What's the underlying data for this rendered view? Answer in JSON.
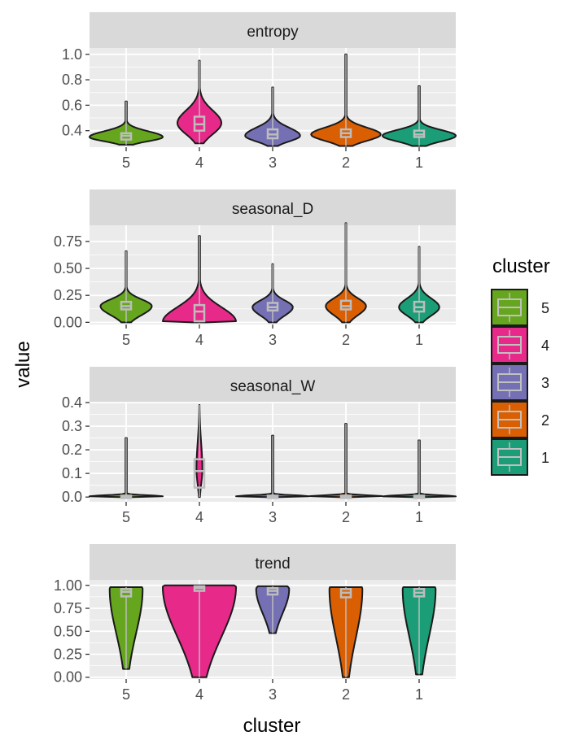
{
  "chart_data": {
    "type": "violin",
    "xlabel": "cluster",
    "ylabel": "value",
    "categories": [
      "5",
      "4",
      "3",
      "2",
      "1"
    ],
    "legend": {
      "title": "cluster",
      "placement": "right",
      "entries": [
        "5",
        "4",
        "3",
        "2",
        "1"
      ]
    },
    "colors": {
      "5": "#66A61E",
      "4": "#E7298A",
      "3": "#7570B3",
      "2": "#D95F02",
      "1": "#1B9E77"
    },
    "panels": [
      {
        "name": "entropy",
        "ylim": [
          0.27,
          1.05
        ],
        "yticks": [
          0.4,
          0.6,
          0.8,
          1.0
        ],
        "ytick_labels": [
          "0.4",
          "0.6",
          "0.8",
          "1.0"
        ],
        "groups": [
          {
            "cluster": "5",
            "min": 0.29,
            "max": 0.63,
            "q1": 0.33,
            "median": 0.36,
            "q3": 0.38,
            "mode": 0.35,
            "width": 1.0
          },
          {
            "cluster": "4",
            "min": 0.3,
            "max": 0.95,
            "q1": 0.4,
            "median": 0.45,
            "q3": 0.51,
            "mode": 0.46,
            "width": 0.6
          },
          {
            "cluster": "3",
            "min": 0.28,
            "max": 0.74,
            "q1": 0.34,
            "median": 0.37,
            "q3": 0.41,
            "mode": 0.36,
            "width": 0.75
          },
          {
            "cluster": "2",
            "min": 0.28,
            "max": 1.0,
            "q1": 0.35,
            "median": 0.38,
            "q3": 0.41,
            "mode": 0.37,
            "width": 0.95
          },
          {
            "cluster": "1",
            "min": 0.28,
            "max": 0.75,
            "q1": 0.35,
            "median": 0.37,
            "q3": 0.4,
            "mode": 0.36,
            "width": 1.0
          }
        ]
      },
      {
        "name": "seasonal_D",
        "ylim": [
          -0.02,
          0.9
        ],
        "yticks": [
          0.0,
          0.25,
          0.5,
          0.75
        ],
        "ytick_labels": [
          "0.00",
          "0.25",
          "0.50",
          "0.75"
        ],
        "groups": [
          {
            "cluster": "5",
            "min": 0.0,
            "max": 0.66,
            "q1": 0.12,
            "median": 0.15,
            "q3": 0.19,
            "mode": 0.15,
            "width": 0.7
          },
          {
            "cluster": "4",
            "min": 0.0,
            "max": 0.8,
            "q1": 0.01,
            "median": 0.1,
            "q3": 0.16,
            "mode": 0.005,
            "width": 1.0
          },
          {
            "cluster": "3",
            "min": 0.0,
            "max": 0.54,
            "q1": 0.11,
            "median": 0.14,
            "q3": 0.18,
            "mode": 0.14,
            "width": 0.55
          },
          {
            "cluster": "2",
            "min": 0.0,
            "max": 0.92,
            "q1": 0.12,
            "median": 0.15,
            "q3": 0.2,
            "mode": 0.15,
            "width": 0.55
          },
          {
            "cluster": "1",
            "min": 0.0,
            "max": 0.7,
            "q1": 0.1,
            "median": 0.14,
            "q3": 0.19,
            "mode": 0.14,
            "width": 0.55
          }
        ]
      },
      {
        "name": "seasonal_W",
        "ylim": [
          -0.02,
          0.4
        ],
        "yticks": [
          0.0,
          0.1,
          0.2,
          0.3,
          0.4
        ],
        "ytick_labels": [
          "0.0",
          "0.1",
          "0.2",
          "0.3",
          "0.4"
        ],
        "groups": [
          {
            "cluster": "5",
            "min": 0.0,
            "max": 0.25,
            "q1": 0.001,
            "median": 0.003,
            "q3": 0.006,
            "mode": 0.003,
            "width": 1.0
          },
          {
            "cluster": "4",
            "min": 0.0,
            "max": 0.39,
            "q1": 0.04,
            "median": 0.11,
            "q3": 0.16,
            "mode": 0.12,
            "width": 0.08
          },
          {
            "cluster": "3",
            "min": 0.0,
            "max": 0.26,
            "q1": 0.001,
            "median": 0.003,
            "q3": 0.006,
            "mode": 0.003,
            "width": 1.0
          },
          {
            "cluster": "2",
            "min": 0.0,
            "max": 0.31,
            "q1": 0.001,
            "median": 0.003,
            "q3": 0.006,
            "mode": 0.003,
            "width": 1.0
          },
          {
            "cluster": "1",
            "min": 0.0,
            "max": 0.24,
            "q1": 0.001,
            "median": 0.003,
            "q3": 0.006,
            "mode": 0.003,
            "width": 1.0
          }
        ]
      },
      {
        "name": "trend",
        "ylim": [
          -0.02,
          1.06
        ],
        "yticks": [
          0.0,
          0.25,
          0.5,
          0.75,
          1.0
        ],
        "ytick_labels": [
          "0.00",
          "0.25",
          "0.50",
          "0.75",
          "1.00"
        ],
        "groups": [
          {
            "cluster": "5",
            "min": 0.09,
            "max": 0.98,
            "q1": 0.88,
            "median": 0.93,
            "q3": 0.96,
            "mode": 0.96,
            "width": 0.45
          },
          {
            "cluster": "4",
            "min": 0.0,
            "max": 1.0,
            "q1": 0.94,
            "median": 0.97,
            "q3": 0.99,
            "mode": 0.985,
            "width": 1.0
          },
          {
            "cluster": "3",
            "min": 0.48,
            "max": 0.99,
            "q1": 0.9,
            "median": 0.94,
            "q3": 0.97,
            "mode": 0.96,
            "width": 0.45
          },
          {
            "cluster": "2",
            "min": 0.0,
            "max": 0.98,
            "q1": 0.87,
            "median": 0.92,
            "q3": 0.96,
            "mode": 0.96,
            "width": 0.45
          },
          {
            "cluster": "1",
            "min": 0.03,
            "max": 0.98,
            "q1": 0.88,
            "median": 0.92,
            "q3": 0.96,
            "mode": 0.96,
            "width": 0.45
          }
        ]
      }
    ]
  }
}
